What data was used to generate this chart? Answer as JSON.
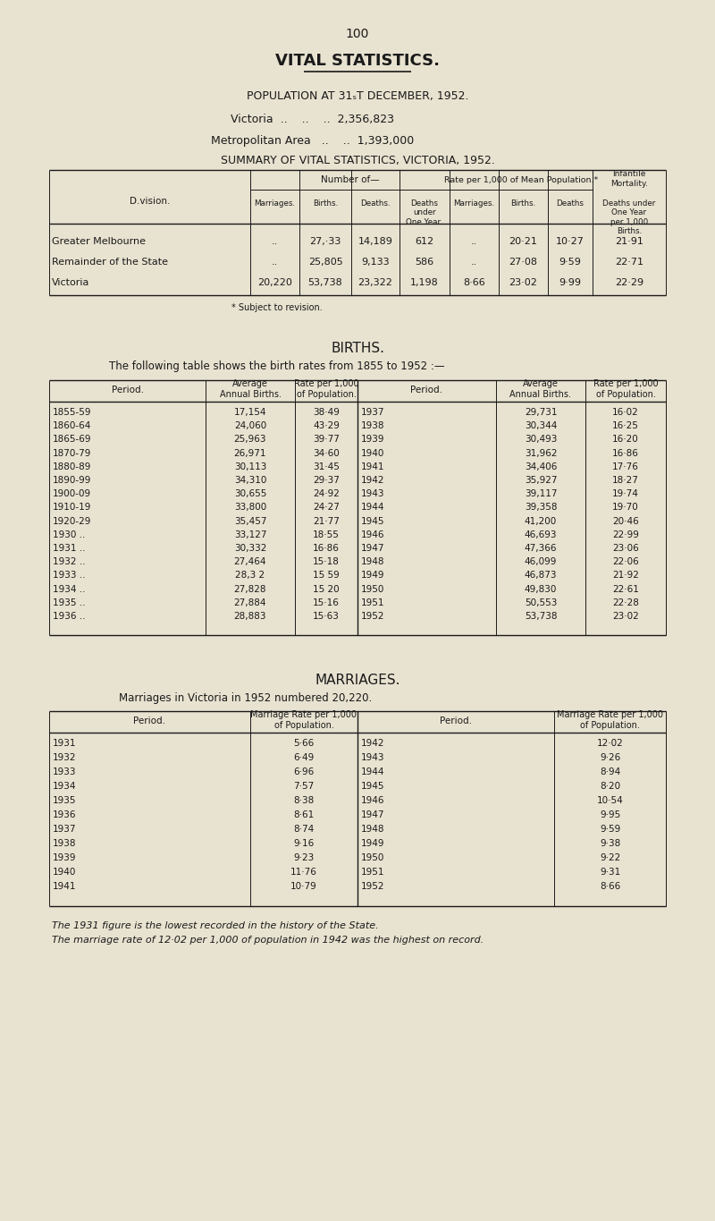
{
  "page_number": "100",
  "title": "VITAL STATISTICS.",
  "bg_color": "#e8e2d0",
  "text_color": "#1a1a1a",
  "summary_rows": [
    [
      "Greater Melbourne",
      "..",
      "27,·33",
      "14,189",
      "612",
      "..",
      "20·21",
      "10·27",
      "21·91"
    ],
    [
      "Remainder of the State",
      "..",
      "25,805",
      "9,133",
      "586",
      "..",
      "27·08",
      "9·59",
      "22·71"
    ],
    [
      "Victoria",
      "20,220",
      "53,738",
      "23,322",
      "1,198",
      "8·66",
      "23·02",
      "9·99",
      "22·29"
    ]
  ],
  "births_left": [
    [
      "1855-59",
      "17,154",
      "38·49"
    ],
    [
      "1860-64",
      "24,060",
      "43·29"
    ],
    [
      "1865-69",
      "25,963",
      "39·77"
    ],
    [
      "1870-79",
      "26,971",
      "34·60"
    ],
    [
      "1880-89",
      "30,113",
      "31·45"
    ],
    [
      "1890-99",
      "34,310",
      "29·37"
    ],
    [
      "1900-09",
      "30,655",
      "24·92"
    ],
    [
      "1910-19",
      "33,800",
      "24·27"
    ],
    [
      "1920-29",
      "35,457",
      "21·77"
    ],
    [
      "1930 ..",
      "33,127",
      "18·55"
    ],
    [
      "1931 ..",
      "30,332",
      "16·86"
    ],
    [
      "1932 ..",
      "27,464",
      "15·18"
    ],
    [
      "1933 ..",
      "28,3 2",
      "15 59"
    ],
    [
      "1934 ..",
      "27,828",
      "15 20"
    ],
    [
      "1935 ..",
      "27,884",
      "15·16"
    ],
    [
      "1936 ..",
      "28,883",
      "15·63"
    ]
  ],
  "births_right": [
    [
      "1937",
      "29,731",
      "16·02"
    ],
    [
      "1938",
      "30,344",
      "16·25"
    ],
    [
      "1939",
      "30,493",
      "16·20"
    ],
    [
      "1940",
      "31,962",
      "16·86"
    ],
    [
      "1941",
      "34,406",
      "17·76"
    ],
    [
      "1942",
      "35,927",
      "18·27"
    ],
    [
      "1943",
      "39,117",
      "19·74"
    ],
    [
      "1944",
      "39,358",
      "19·70"
    ],
    [
      "1945",
      "41,200",
      "20·46"
    ],
    [
      "1946",
      "46,693",
      "22·99"
    ],
    [
      "1947",
      "47,366",
      "23·06"
    ],
    [
      "1948",
      "46,099",
      "22·06"
    ],
    [
      "1949",
      "46,873",
      "21·92"
    ],
    [
      "1950",
      "49,830",
      "22·61"
    ],
    [
      "1951",
      "50,553",
      "22·28"
    ],
    [
      "1952",
      "53,738",
      "23·02"
    ]
  ],
  "marriages_left": [
    [
      "1931",
      "5·66"
    ],
    [
      "1932",
      "6·49"
    ],
    [
      "1933",
      "6·96"
    ],
    [
      "1934",
      "7·57"
    ],
    [
      "1935",
      "8·38"
    ],
    [
      "1936",
      "8·61"
    ],
    [
      "1937",
      "8·74"
    ],
    [
      "1938",
      "9·16"
    ],
    [
      "1939",
      "9·23"
    ],
    [
      "1940",
      "11·76"
    ],
    [
      "1941",
      "10·79"
    ]
  ],
  "marriages_right": [
    [
      "1942",
      "12·02"
    ],
    [
      "1943",
      "9·26"
    ],
    [
      "1944",
      "8·94"
    ],
    [
      "1945",
      "8·20"
    ],
    [
      "1946",
      "10·54"
    ],
    [
      "1947",
      "9·95"
    ],
    [
      "1948",
      "9·59"
    ],
    [
      "1949",
      "9·38"
    ],
    [
      "1950",
      "9·22"
    ],
    [
      "1951",
      "9·31"
    ],
    [
      "1952",
      "8·66"
    ]
  ],
  "footer1": "The 1931 figure is the lowest recorded in the history of the State.",
  "footer2": "The marriage rate of 12·02 per 1,000 of population in 1942 was the highest on record."
}
